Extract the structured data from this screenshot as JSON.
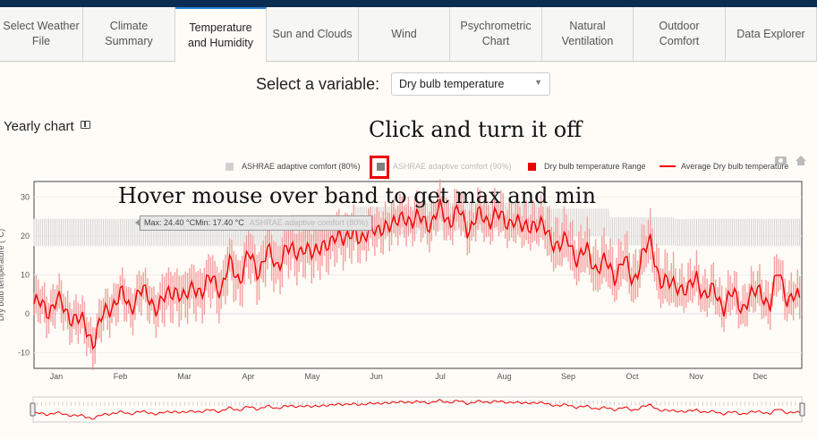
{
  "tabs": [
    {
      "label": "Select Weather\nFile",
      "active": false
    },
    {
      "label": "Climate\nSummary",
      "active": false
    },
    {
      "label": "Temperature\nand Humidity",
      "active": true
    },
    {
      "label": "Sun and Clouds",
      "active": false
    },
    {
      "label": "Wind",
      "active": false
    },
    {
      "label": "Psychrometric\nChart",
      "active": false
    },
    {
      "label": "Natural\nVentilation",
      "active": false
    },
    {
      "label": "Outdoor\nComfort",
      "active": false
    },
    {
      "label": "Data Explorer",
      "active": false
    }
  ],
  "variable": {
    "label": "Select a variable:",
    "selected": "Dry bulb temperature"
  },
  "section": {
    "title": "Yearly chart"
  },
  "annotations": {
    "click": "Click and turn it off",
    "hover": "Hover mouse over band to get max and min"
  },
  "legend": [
    {
      "label": "ASHRAE adaptive comfort (80%)",
      "color": "#d0d0d0",
      "type": "box",
      "dim": false
    },
    {
      "label": "ASHRAE adaptive comfort (90%)",
      "color": "#808080",
      "type": "box",
      "dim": true
    },
    {
      "label": "Dry bulb temperature Range",
      "color": "#ee0000",
      "type": "box",
      "dim": false
    },
    {
      "label": "Average Dry bulb temperature",
      "color": "#ee0000",
      "type": "line",
      "dim": false
    }
  ],
  "tooltip": {
    "text": "Max: 24.40 °CMin: 17.40 °C",
    "name": "ASHRAE adaptive comfort (80%)"
  },
  "chart_data": {
    "type": "line",
    "ylabel": "Dry bulb temperature (°C)",
    "ylim": [
      -14,
      34
    ],
    "yticks": [
      -10,
      0,
      10,
      20,
      30
    ],
    "months": [
      "Jan",
      "Feb",
      "Mar",
      "Apr",
      "May",
      "Jun",
      "Jul",
      "Aug",
      "Sep",
      "Oct",
      "Nov",
      "Dec"
    ],
    "colors": {
      "comfort": "#d0d0d0",
      "range": "#f08080",
      "average": "#ee0000"
    },
    "comfort_band_80": {
      "month_min": [
        17.4,
        17.4,
        17.4,
        17.4,
        18.5,
        20.5,
        21.5,
        21.5,
        20.0,
        17.6,
        17.4,
        17.4
      ],
      "month_max": [
        24.4,
        24.4,
        24.4,
        24.4,
        25.5,
        27.5,
        28.5,
        28.5,
        27.0,
        24.8,
        24.4,
        24.4
      ]
    },
    "daily_average_by_month": [
      [
        2.5,
        1.0,
        3.5,
        0.5,
        -1.0,
        -3.0,
        -7.0
      ],
      [
        -1.0,
        2.5,
        5.0,
        1.5,
        6.0,
        4.0,
        2.0
      ],
      [
        4.0,
        7.0,
        3.0,
        8.0,
        5.0,
        10.0,
        6.0
      ],
      [
        13.0,
        9.0,
        15.0,
        11.0,
        16.0,
        12.0,
        17.0
      ],
      [
        15.0,
        18.0,
        14.0,
        19.0,
        17.0,
        21.0,
        20.0
      ],
      [
        19.0,
        22.0,
        20.0,
        24.0,
        22.0,
        26.0,
        23.0
      ],
      [
        25.0,
        23.0,
        27.0,
        24.0,
        26.0,
        22.0,
        25.0
      ],
      [
        24.0,
        26.0,
        23.0,
        25.0,
        21.0,
        24.0,
        22.0
      ],
      [
        20.0,
        17.0,
        19.0,
        14.0,
        16.0,
        12.0,
        13.0
      ],
      [
        10.0,
        14.0,
        8.0,
        15.0,
        18.0,
        9.0,
        7.0
      ],
      [
        8.0,
        5.0,
        10.0,
        4.0,
        6.0,
        2.0,
        5.0
      ],
      [
        2.0,
        4.0,
        7.0,
        1.0,
        12.0,
        3.0,
        4.0
      ]
    ],
    "daily_range_halfwidth_by_month": [
      5,
      5,
      6,
      6,
      6,
      5,
      5,
      5,
      6,
      6,
      5,
      5
    ]
  }
}
